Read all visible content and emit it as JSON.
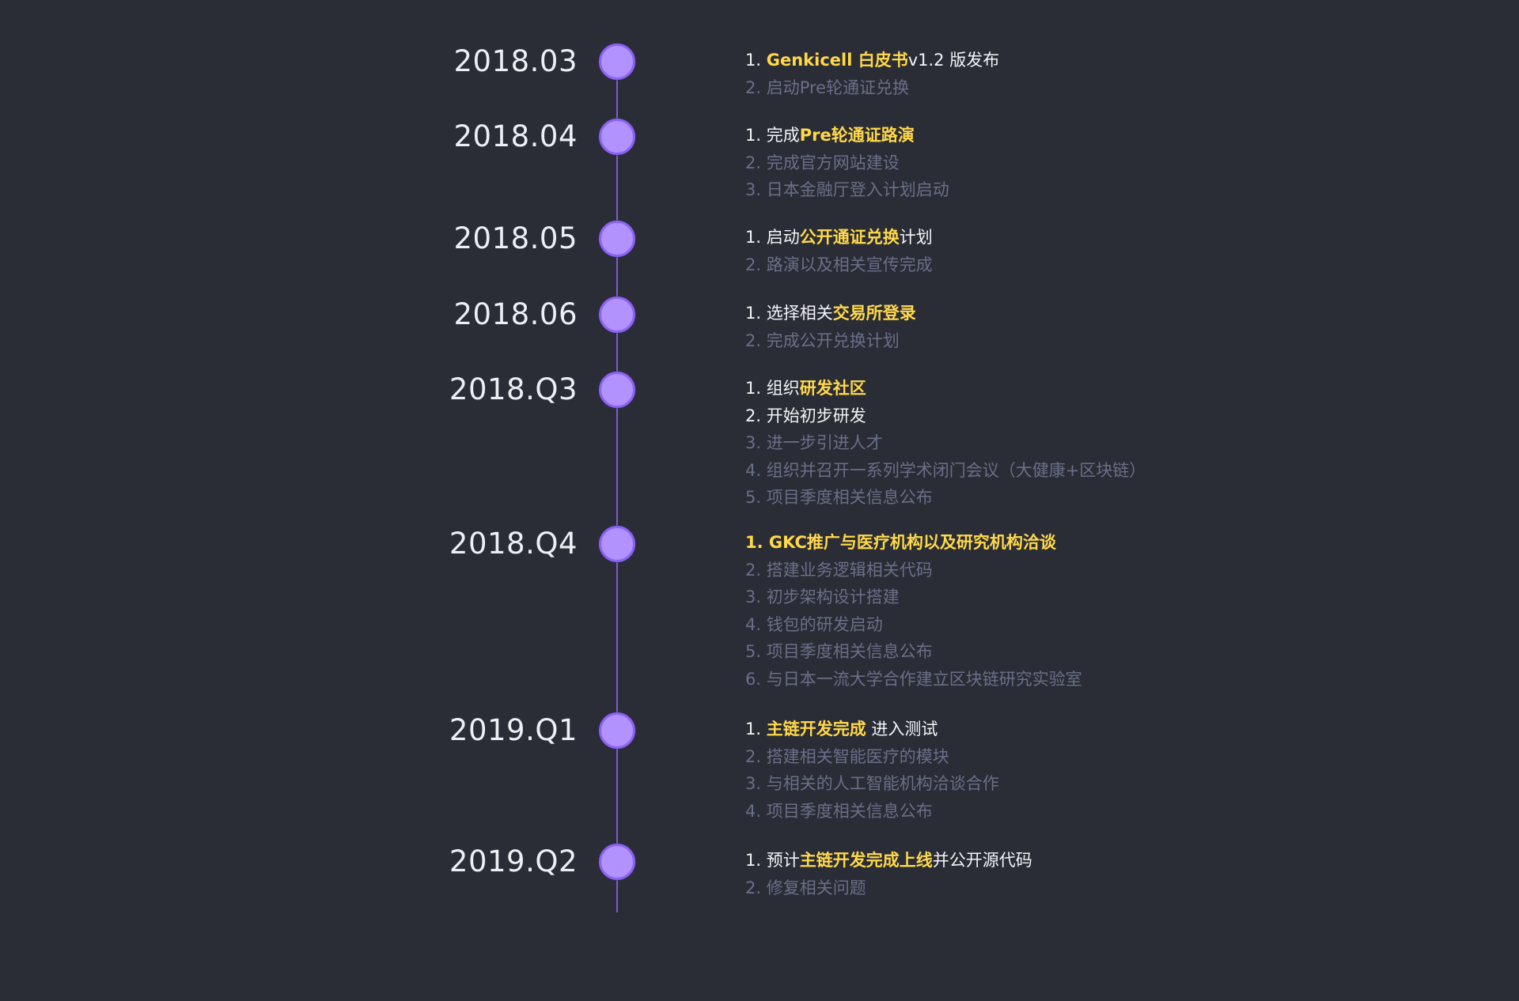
{
  "colors": {
    "background": "#2a2d36",
    "line": "#7d5bd6",
    "node": "#b192ff",
    "primary_text": "#f4f5f8",
    "secondary_text": "#6a6f88",
    "highlight": "#ffd84a"
  },
  "milestones": [
    {
      "date": "2018.03",
      "items": [
        {
          "style": "primary",
          "segments": [
            {
              "t": "1. "
            },
            {
              "t": "Genkicell 白皮书",
              "hl": true
            },
            {
              "t": "v1.2 版发布"
            }
          ]
        },
        {
          "style": "secondary",
          "segments": [
            {
              "t": "2. 启动Pre轮通证兑换"
            }
          ]
        }
      ]
    },
    {
      "date": "2018.04",
      "items": [
        {
          "style": "primary",
          "segments": [
            {
              "t": "1. 完成"
            },
            {
              "t": "Pre轮通证路演",
              "hl": true
            }
          ]
        },
        {
          "style": "secondary",
          "segments": [
            {
              "t": "2. 完成官方网站建设"
            }
          ]
        },
        {
          "style": "secondary",
          "segments": [
            {
              "t": "3. 日本金融厅登入计划启动"
            }
          ]
        }
      ]
    },
    {
      "date": "2018.05",
      "items": [
        {
          "style": "primary",
          "segments": [
            {
              "t": "1. 启动"
            },
            {
              "t": "公开通证兑换",
              "hl": true
            },
            {
              "t": "计划"
            }
          ]
        },
        {
          "style": "secondary",
          "segments": [
            {
              "t": "2. 路演以及相关宣传完成"
            }
          ]
        }
      ]
    },
    {
      "date": "2018.06",
      "items": [
        {
          "style": "primary",
          "segments": [
            {
              "t": "1. 选择相关"
            },
            {
              "t": "交易所登录",
              "hl": true
            }
          ]
        },
        {
          "style": "secondary",
          "segments": [
            {
              "t": "2. 完成公开兑换计划"
            }
          ]
        }
      ]
    },
    {
      "date": "2018.Q3",
      "items": [
        {
          "style": "primary",
          "segments": [
            {
              "t": "1. 组织"
            },
            {
              "t": "研发社区",
              "hl": true
            }
          ]
        },
        {
          "style": "primary",
          "segments": [
            {
              "t": "2. 开始初步研发"
            }
          ]
        },
        {
          "style": "secondary",
          "segments": [
            {
              "t": "3. 进一步引进人才"
            }
          ]
        },
        {
          "style": "secondary",
          "segments": [
            {
              "t": "4. 组织并召开一系列学术闭门会议（大健康+区块链）"
            }
          ]
        },
        {
          "style": "secondary",
          "segments": [
            {
              "t": "5. 项目季度相关信息公布"
            }
          ]
        }
      ]
    },
    {
      "date": "2018.Q4",
      "items": [
        {
          "style": "all-hl",
          "segments": [
            {
              "t": "1. GKC推广与医疗机构以及研究机构洽谈"
            }
          ]
        },
        {
          "style": "secondary",
          "segments": [
            {
              "t": "2. 搭建业务逻辑相关代码"
            }
          ]
        },
        {
          "style": "secondary",
          "segments": [
            {
              "t": "3. 初步架构设计搭建"
            }
          ]
        },
        {
          "style": "secondary",
          "segments": [
            {
              "t": "4. 钱包的研发启动"
            }
          ]
        },
        {
          "style": "secondary",
          "segments": [
            {
              "t": "5. 项目季度相关信息公布"
            }
          ]
        },
        {
          "style": "secondary",
          "segments": [
            {
              "t": "6. 与日本一流大学合作建立区块链研究实验室"
            }
          ]
        }
      ]
    },
    {
      "date": "2019.Q1",
      "items": [
        {
          "style": "primary",
          "segments": [
            {
              "t": "1. "
            },
            {
              "t": "主链开发完成",
              "hl": true
            },
            {
              "t": " 进入测试"
            }
          ]
        },
        {
          "style": "secondary",
          "segments": [
            {
              "t": "2. 搭建相关智能医疗的模块"
            }
          ]
        },
        {
          "style": "secondary",
          "segments": [
            {
              "t": "3. 与相关的人工智能机构洽谈合作"
            }
          ]
        },
        {
          "style": "secondary",
          "segments": [
            {
              "t": "4. 项目季度相关信息公布"
            }
          ]
        }
      ]
    },
    {
      "date": "2019.Q2",
      "items": [
        {
          "style": "primary",
          "segments": [
            {
              "t": "1. 预计"
            },
            {
              "t": "主链开发完成上线",
              "hl": true
            },
            {
              "t": "并公开源代码"
            }
          ]
        },
        {
          "style": "secondary",
          "segments": [
            {
              "t": "2. 修复相关问题"
            }
          ]
        }
      ]
    }
  ]
}
